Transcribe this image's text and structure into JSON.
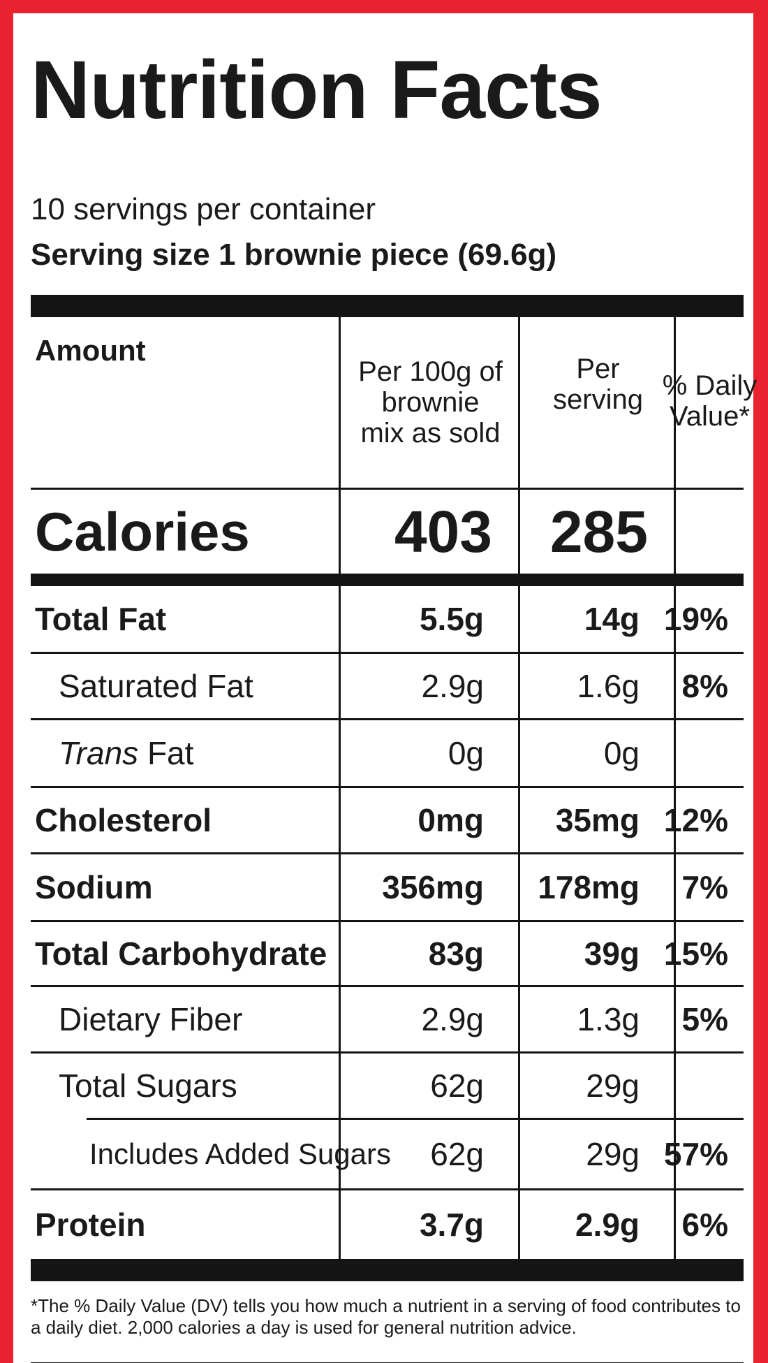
{
  "label": {
    "title": "Nutrition Facts",
    "servings_per_container": "10 servings per container",
    "serving_size": "Serving size 1 brownie piece (69.6g)",
    "columns": {
      "amount": "Amount",
      "per_100g": "Per 100g of brownie mix as sold",
      "per_100g_lines": [
        "Per 100g of",
        "brownie",
        "mix as sold"
      ],
      "per_serving_lines": [
        "Per",
        "serving"
      ],
      "daily_value_lines": [
        "% Daily",
        "Value*"
      ]
    },
    "calories": {
      "label": "Calories",
      "per_100g": "403",
      "per_serving": "285"
    },
    "nutrients": [
      {
        "name": "Total Fat",
        "per_100g": "5.5g",
        "per_serving": "14g",
        "dv": "19%",
        "bold": true,
        "indent": 0
      },
      {
        "name": "Saturated Fat",
        "per_100g": "2.9g",
        "per_serving": "1.6g",
        "dv": "8%",
        "bold": false,
        "indent": 1
      },
      {
        "name_italic": "Trans",
        "name": " Fat",
        "per_100g": "0g",
        "per_serving": "0g",
        "dv": "",
        "bold": false,
        "indent": 1
      },
      {
        "name": "Cholesterol",
        "per_100g": "0mg",
        "per_serving": "35mg",
        "dv": "12%",
        "bold": true,
        "indent": 0
      },
      {
        "name": "Sodium",
        "per_100g": "356mg",
        "per_serving": "178mg",
        "dv": "7%",
        "bold": true,
        "indent": 0
      },
      {
        "name": "Total Carbohydrate",
        "per_100g": "83g",
        "per_serving": "39g",
        "dv": "15%",
        "bold": true,
        "indent": 0
      },
      {
        "name": "Dietary Fiber",
        "per_100g": "2.9g",
        "per_serving": "1.3g",
        "dv": "5%",
        "bold": false,
        "indent": 1
      },
      {
        "name": "Total Sugars",
        "per_100g": "62g",
        "per_serving": "29g",
        "dv": "",
        "bold": false,
        "indent": 1
      },
      {
        "name": "Includes Added Sugars",
        "per_100g": "62g",
        "per_serving": "29g",
        "dv": "57%",
        "bold": false,
        "indent": 2
      },
      {
        "name": "Protein",
        "per_100g": "3.7g",
        "per_serving": "2.9g",
        "dv": "6%",
        "bold": true,
        "indent": 0
      }
    ],
    "footnote": "*The % Daily Value (DV) tells you how much a nutrient in a serving of food contributes to a daily diet. 2,000 calories a day is used for general nutrition advice."
  },
  "colors": {
    "border": "#e8232f",
    "ink": "#141414"
  }
}
